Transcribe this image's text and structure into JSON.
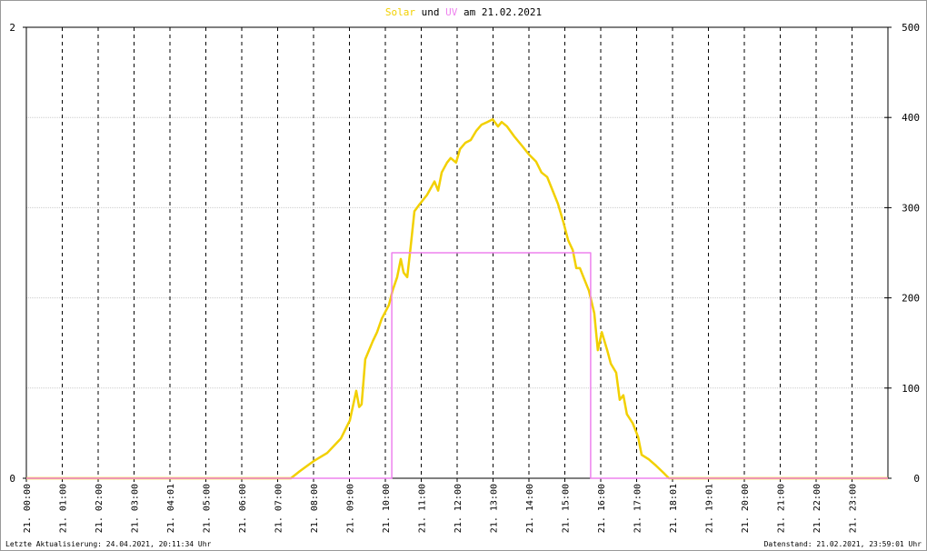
{
  "chart_data": {
    "type": "line",
    "title": {
      "joiner": "und",
      "suffix": "am 21.02.2021"
    },
    "xlim": [
      0,
      24
    ],
    "xticks": [
      {
        "value": 0,
        "label": "21. 00:00"
      },
      {
        "value": 1,
        "label": "21. 01:00"
      },
      {
        "value": 2,
        "label": "21. 02:00"
      },
      {
        "value": 3,
        "label": "21. 03:00"
      },
      {
        "value": 4,
        "label": "21. 04:01"
      },
      {
        "value": 5,
        "label": "21. 05:00"
      },
      {
        "value": 6,
        "label": "21. 06:00"
      },
      {
        "value": 7,
        "label": "21. 07:00"
      },
      {
        "value": 8,
        "label": "21. 08:00"
      },
      {
        "value": 9,
        "label": "21. 09:00"
      },
      {
        "value": 10,
        "label": "21. 10:00"
      },
      {
        "value": 11,
        "label": "21. 11:00"
      },
      {
        "value": 12,
        "label": "21. 12:00"
      },
      {
        "value": 13,
        "label": "21. 13:00"
      },
      {
        "value": 14,
        "label": "21. 14:00"
      },
      {
        "value": 15,
        "label": "21. 15:00"
      },
      {
        "value": 16,
        "label": "21. 16:00"
      },
      {
        "value": 17,
        "label": "21. 17:00"
      },
      {
        "value": 18,
        "label": "21. 18:01"
      },
      {
        "value": 19,
        "label": "21. 19:01"
      },
      {
        "value": 20,
        "label": "21. 20:00"
      },
      {
        "value": 21,
        "label": "21. 21:00"
      },
      {
        "value": 22,
        "label": "21. 22:00"
      },
      {
        "value": 23,
        "label": "21. 23:00"
      }
    ],
    "ylim": [
      0,
      2
    ],
    "yticks": [
      0,
      2
    ],
    "y2lim": [
      0,
      500
    ],
    "y2ticks": [
      0,
      100,
      200,
      300,
      400,
      500
    ],
    "grid": true,
    "series": [
      {
        "name": "Solar",
        "color": "#f2d000",
        "axis": "y2",
        "x": [
          0,
          7.37,
          7.62,
          8.0,
          8.38,
          8.76,
          9.01,
          9.19,
          9.27,
          9.34,
          9.44,
          9.65,
          9.77,
          9.9,
          10.1,
          10.2,
          10.33,
          10.43,
          10.51,
          10.61,
          10.71,
          10.81,
          10.96,
          11.16,
          11.37,
          11.47,
          11.57,
          11.72,
          11.82,
          11.97,
          12.08,
          12.23,
          12.38,
          12.53,
          12.68,
          12.84,
          12.99,
          13.14,
          13.24,
          13.39,
          13.59,
          13.8,
          14.0,
          14.2,
          14.35,
          14.51,
          14.66,
          14.81,
          14.96,
          15.09,
          15.22,
          15.32,
          15.42,
          15.52,
          15.67,
          15.82,
          15.92,
          16.03,
          16.18,
          16.28,
          16.43,
          16.53,
          16.63,
          16.73,
          16.89,
          17.04,
          17.14,
          17.34,
          17.54,
          17.75,
          17.9,
          24
        ],
        "values": [
          0,
          0,
          8,
          19,
          28,
          44,
          64,
          97,
          79,
          82,
          132,
          152,
          162,
          177,
          192,
          208,
          223,
          243,
          228,
          223,
          258,
          296,
          304,
          314,
          329,
          319,
          339,
          350,
          355,
          350,
          365,
          372,
          375,
          385,
          392,
          395,
          398,
          390,
          395,
          390,
          379,
          369,
          359,
          351,
          339,
          334,
          319,
          304,
          284,
          264,
          253,
          233,
          233,
          223,
          208,
          183,
          142,
          162,
          142,
          127,
          117,
          87,
          92,
          71,
          61,
          46,
          26,
          21,
          14,
          6,
          0,
          0
        ]
      },
      {
        "name": "UV",
        "color": "#ee82ee",
        "axis": "y",
        "x": [
          0,
          10.18,
          10.18,
          10.18,
          15.72,
          15.72,
          15.72,
          24
        ],
        "values": [
          0,
          0,
          0.5,
          1,
          1,
          0.5,
          0,
          0
        ]
      }
    ]
  },
  "footer": {
    "left": "Letzte Aktualisierung: 24.04.2021, 20:11:34 Uhr",
    "right": "Datenstand: 21.02.2021, 23:59:01 Uhr"
  }
}
